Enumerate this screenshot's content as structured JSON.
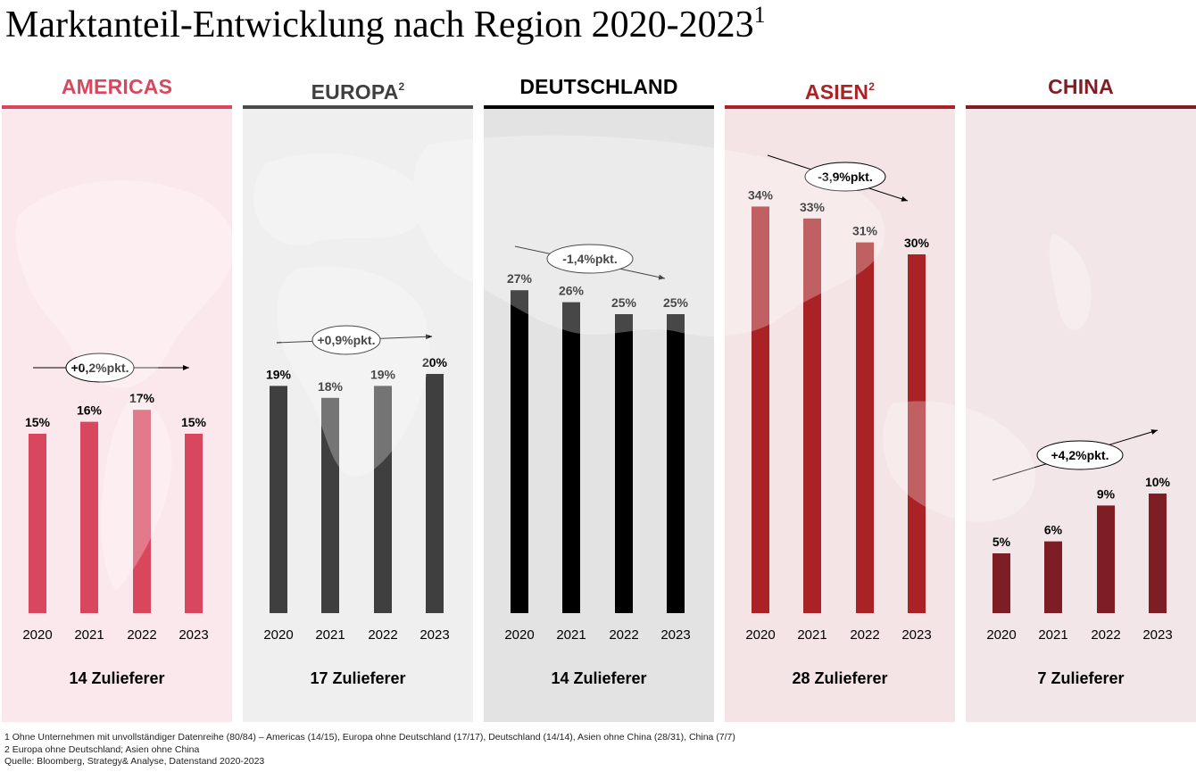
{
  "title": {
    "text": "Marktanteil-Entwicklung nach Region 2020-2023",
    "footnote_mark": "1"
  },
  "chart_data": [
    {
      "type": "bar",
      "region": "AMERICAS",
      "region_sup": "",
      "color": "#d9475f",
      "rule_color": "#d9475f",
      "bg_color": "#fbe8ec",
      "categories": [
        "2020",
        "2021",
        "2022",
        "2023"
      ],
      "values": [
        15,
        16,
        17,
        15
      ],
      "value_labels": [
        "15%",
        "16%",
        "17%",
        "15%"
      ],
      "delta": "+0,2%pkt.",
      "suppliers": "14 Zulieferer",
      "ylim": [
        0,
        40
      ]
    },
    {
      "type": "bar",
      "region": "EUROPA",
      "region_sup": "2",
      "color": "#3f3f3f",
      "rule_color": "#4a4a4a",
      "bg_color": "#efefef",
      "categories": [
        "2020",
        "2021",
        "2022",
        "2023"
      ],
      "values": [
        19,
        18,
        19,
        20
      ],
      "value_labels": [
        "19%",
        "18%",
        "19%",
        "20%"
      ],
      "delta": "+0,9%pkt.",
      "suppliers": "17 Zulieferer",
      "ylim": [
        0,
        40
      ]
    },
    {
      "type": "bar",
      "region": "DEUTSCHLAND",
      "region_sup": "",
      "color": "#000000",
      "rule_color": "#000000",
      "bg_color": "#e3e3e3",
      "categories": [
        "2020",
        "2021",
        "2022",
        "2023"
      ],
      "values": [
        27,
        26,
        25,
        25
      ],
      "value_labels": [
        "27%",
        "26%",
        "25%",
        "25%"
      ],
      "delta": "-1,4%pkt.",
      "suppliers": "14 Zulieferer",
      "ylim": [
        0,
        40
      ]
    },
    {
      "type": "bar",
      "region": "ASIEN",
      "region_sup": "2",
      "color": "#a92326",
      "rule_color": "#a92326",
      "bg_color": "#f4e4e5",
      "categories": [
        "2020",
        "2021",
        "2022",
        "2023"
      ],
      "values": [
        34,
        33,
        31,
        30
      ],
      "value_labels": [
        "34%",
        "33%",
        "31%",
        "30%"
      ],
      "delta": "-3,9%pkt.",
      "suppliers": "28 Zulieferer",
      "ylim": [
        0,
        40
      ]
    },
    {
      "type": "bar",
      "region": "CHINA",
      "region_sup": "",
      "color": "#7f1d24",
      "rule_color": "#7f1d24",
      "bg_color": "#f2e6e8",
      "categories": [
        "2020",
        "2021",
        "2022",
        "2023"
      ],
      "values": [
        5,
        6,
        9,
        10
      ],
      "value_labels": [
        "5%",
        "6%",
        "9%",
        "10%"
      ],
      "delta": "+4,2%pkt.",
      "suppliers": "7 Zulieferer",
      "ylim": [
        0,
        40
      ]
    }
  ],
  "footnotes": [
    "1 Ohne Unternehmen mit unvollständiger Datenreihe (80/84) – Americas (14/15), Europa ohne Deutschland (17/17), Deutschland (14/14), Asien ohne China (28/31), China (7/7)",
    "2 Europa ohne Deutschland; Asien ohne China",
    "Quelle: Bloomberg, Strategy& Analyse, Datenstand 2020-2023"
  ],
  "icons": {
    "background": "world-map-icon",
    "trend": "trend-arrow-icon"
  }
}
